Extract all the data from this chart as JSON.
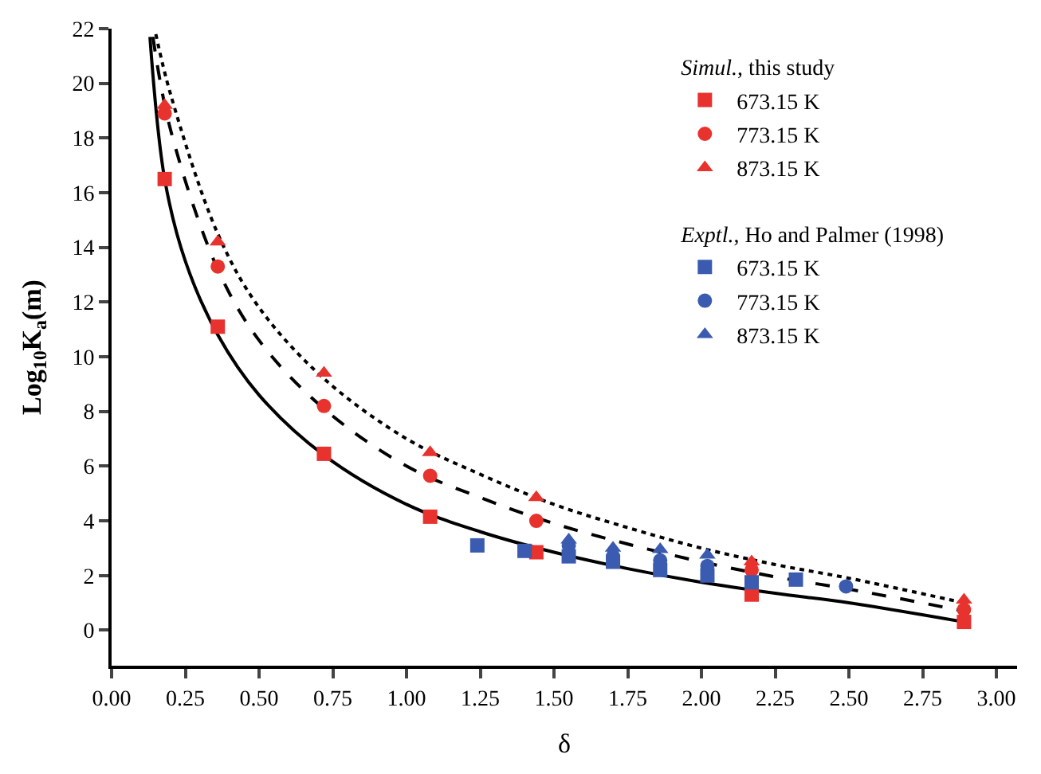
{
  "chart_data": {
    "type": "scatter",
    "xlabel": "δ",
    "ylabel": "Log$_{10}$K$_{a}$(m)",
    "xlim": [
      0,
      3.07
    ],
    "ylim": [
      -1.3,
      22
    ],
    "xticks": [
      {
        "value": 0,
        "label": "0.00"
      },
      {
        "value": 0.25,
        "label": "0.25"
      },
      {
        "value": 0.5,
        "label": "0.50"
      },
      {
        "value": 0.75,
        "label": "0.75"
      },
      {
        "value": 1,
        "label": "1.00"
      },
      {
        "value": 1.25,
        "label": "1.25"
      },
      {
        "value": 1.5,
        "label": "1.50"
      },
      {
        "value": 1.75,
        "label": "1.75"
      },
      {
        "value": 2,
        "label": "2.00"
      },
      {
        "value": 2.25,
        "label": "2.25"
      },
      {
        "value": 2.5,
        "label": "2.50"
      },
      {
        "value": 2.75,
        "label": "2.75"
      },
      {
        "value": 3,
        "label": "3.00"
      }
    ],
    "yticks": [
      0,
      2,
      4,
      6,
      8,
      10,
      12,
      14,
      16,
      18,
      20,
      22
    ],
    "grid": false,
    "legend": "top right",
    "annotations": [
      "*Simul.*, this study",
      "*Exptl.*, Ho and Palmer (1998)"
    ],
    "series": [
      {
        "type": "line",
        "color": "#000000",
        "line_style": "solid",
        "x": [
          0.13,
          0.18,
          0.25,
          0.36,
          0.5,
          0.72,
          1.0,
          1.25,
          1.5,
          1.75,
          2.0,
          2.25,
          2.5,
          2.89
        ],
        "values": [
          21.7,
          16.5,
          13.5,
          10.8,
          8.6,
          6.4,
          4.6,
          3.6,
          2.85,
          2.25,
          1.75,
          1.35,
          1.0,
          0.3
        ]
      },
      {
        "type": "line",
        "color": "#000000",
        "line_style": "dashed",
        "x": [
          0.14,
          0.2,
          0.36,
          0.5,
          0.72,
          1.0,
          1.25,
          1.5,
          1.75,
          2.0,
          2.25,
          2.5,
          2.89
        ],
        "values": [
          21.7,
          18.3,
          13.2,
          10.6,
          8.1,
          6.0,
          4.85,
          3.9,
          3.15,
          2.5,
          1.95,
          1.5,
          0.7
        ]
      },
      {
        "type": "line",
        "color": "#000000",
        "line_style": "dotted",
        "x": [
          0.15,
          0.2,
          0.36,
          0.5,
          0.72,
          1.0,
          1.25,
          1.5,
          1.75,
          2.0,
          2.25,
          2.5,
          2.89
        ],
        "values": [
          21.8,
          19.6,
          14.5,
          11.8,
          9.2,
          7.0,
          5.7,
          4.6,
          3.75,
          3.0,
          2.4,
          1.9,
          1.0
        ]
      },
      {
        "name": "673.15 K",
        "marker": "square",
        "color": "#e8322d",
        "x": [
          0.18,
          0.36,
          0.72,
          1.08,
          1.44,
          2.17,
          2.89
        ],
        "values": [
          16.5,
          11.1,
          6.45,
          4.15,
          2.85,
          1.3,
          0.3
        ]
      },
      {
        "name": "773.15 K",
        "marker": "circle",
        "color": "#e8322d",
        "x": [
          0.18,
          0.36,
          0.72,
          1.08,
          1.44,
          2.17,
          2.89
        ],
        "values": [
          18.9,
          13.3,
          8.2,
          5.65,
          4.0,
          2.2,
          0.75
        ]
      },
      {
        "name": "873.15 K",
        "marker": "triangle",
        "color": "#e8322d",
        "x": [
          0.18,
          0.36,
          0.72,
          1.08,
          1.44,
          2.17,
          2.89
        ],
        "values": [
          19.2,
          14.2,
          9.4,
          6.5,
          4.85,
          2.5,
          1.1
        ]
      },
      {
        "name": "673.15 K",
        "marker": "square",
        "color": "#3a5bb0",
        "x": [
          1.24,
          1.4,
          1.55,
          1.7,
          1.86,
          2.02,
          2.17,
          2.32
        ],
        "values": [
          3.1,
          2.9,
          2.7,
          2.5,
          2.2,
          2.0,
          1.75,
          1.85
        ]
      },
      {
        "name": "773.15 K",
        "marker": "circle",
        "color": "#3a5bb0",
        "x": [
          1.55,
          1.7,
          1.86,
          2.02,
          2.49
        ],
        "values": [
          3.1,
          2.7,
          2.55,
          2.35,
          1.6
        ]
      },
      {
        "name": "873.15 K",
        "marker": "triangle",
        "color": "#3a5bb0",
        "x": [
          1.55,
          1.7,
          1.86,
          2.02
        ],
        "values": [
          3.3,
          3.0,
          2.95,
          2.75
        ]
      }
    ]
  }
}
